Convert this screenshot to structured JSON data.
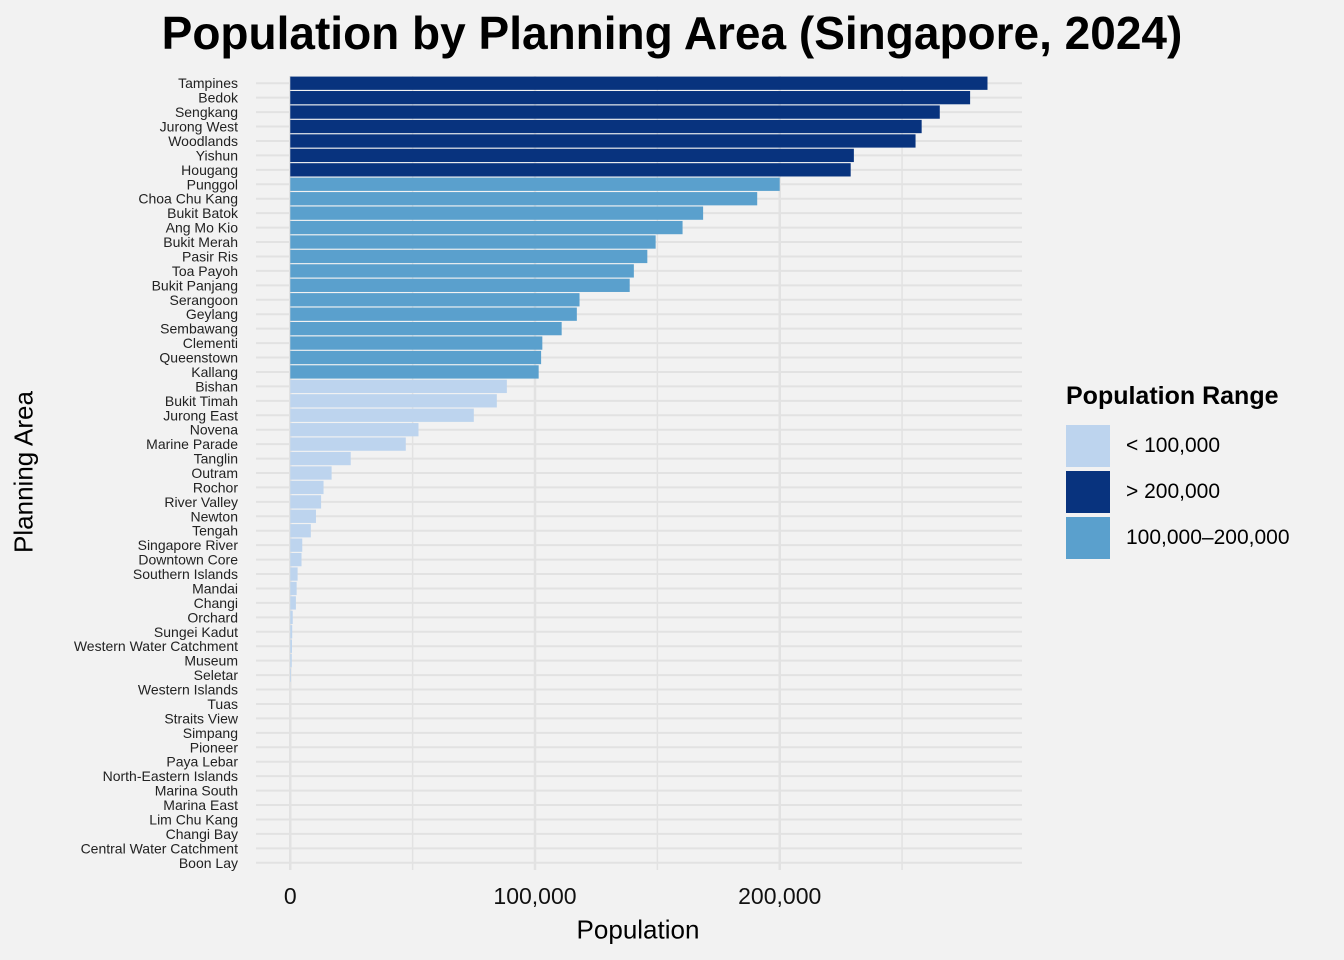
{
  "chart_data": {
    "type": "bar",
    "orientation": "horizontal",
    "title": "Population by Planning Area (Singapore, 2024)",
    "xlabel": "Population",
    "ylabel": "Planning Area",
    "xlim": [
      -14000,
      299000
    ],
    "xticks": [
      0,
      100000,
      200000
    ],
    "xtick_labels": [
      "0",
      "100,000",
      "200,000"
    ],
    "grid": true,
    "legend_position": "right",
    "legend": {
      "title": "Population Range",
      "entries": [
        {
          "label": "< 100,000",
          "color": "#bdd4ee"
        },
        {
          "label": "> 200,000",
          "color": "#08337e"
        },
        {
          "label": "100,000–200,000",
          "color": "#5aa0cd"
        }
      ]
    },
    "categories": [
      "Tampines",
      "Bedok",
      "Sengkang",
      "Jurong West",
      "Woodlands",
      "Yishun",
      "Hougang",
      "Punggol",
      "Choa Chu Kang",
      "Bukit Batok",
      "Ang Mo Kio",
      "Bukit Merah",
      "Pasir Ris",
      "Toa Payoh",
      "Bukit Panjang",
      "Serangoon",
      "Geylang",
      "Sembawang",
      "Clementi",
      "Queenstown",
      "Kallang",
      "Bishan",
      "Bukit Timah",
      "Jurong East",
      "Novena",
      "Marine Parade",
      "Tanglin",
      "Outram",
      "Rochor",
      "River Valley",
      "Newton",
      "Tengah",
      "Singapore River",
      "Downtown Core",
      "Southern Islands",
      "Mandai",
      "Changi",
      "Orchard",
      "Sungei Kadut",
      "Western Water Catchment",
      "Museum",
      "Seletar",
      "Western Islands",
      "Tuas",
      "Straits View",
      "Simpang",
      "Pioneer",
      "Paya Lebar",
      "North-Eastern Islands",
      "Marina South",
      "Marina East",
      "Lim Chu Kang",
      "Changi Bay",
      "Central Water Catchment",
      "Boon Lay"
    ],
    "values": [
      284900,
      277800,
      265400,
      258000,
      255500,
      230300,
      229000,
      200000,
      190800,
      168700,
      160300,
      149300,
      145900,
      140400,
      138700,
      118200,
      117100,
      110900,
      103000,
      102500,
      101500,
      88500,
      84400,
      75000,
      52400,
      47200,
      24700,
      16900,
      13600,
      12600,
      10500,
      8400,
      4900,
      4600,
      3000,
      2600,
      2300,
      1000,
      800,
      700,
      600,
      300,
      0,
      0,
      0,
      0,
      0,
      0,
      0,
      0,
      0,
      0,
      0,
      0,
      0
    ],
    "color_groups": [
      "> 200,000",
      "> 200,000",
      "> 200,000",
      "> 200,000",
      "> 200,000",
      "> 200,000",
      "> 200,000",
      "100,000–200,000",
      "100,000–200,000",
      "100,000–200,000",
      "100,000–200,000",
      "100,000–200,000",
      "100,000–200,000",
      "100,000–200,000",
      "100,000–200,000",
      "100,000–200,000",
      "100,000–200,000",
      "100,000–200,000",
      "100,000–200,000",
      "100,000–200,000",
      "100,000–200,000",
      "< 100,000",
      "< 100,000",
      "< 100,000",
      "< 100,000",
      "< 100,000",
      "< 100,000",
      "< 100,000",
      "< 100,000",
      "< 100,000",
      "< 100,000",
      "< 100,000",
      "< 100,000",
      "< 100,000",
      "< 100,000",
      "< 100,000",
      "< 100,000",
      "< 100,000",
      "< 100,000",
      "< 100,000",
      "< 100,000",
      "< 100,000",
      "< 100,000",
      "< 100,000",
      "< 100,000",
      "< 100,000",
      "< 100,000",
      "< 100,000",
      "< 100,000",
      "< 100,000",
      "< 100,000",
      "< 100,000",
      "< 100,000",
      "< 100,000",
      "< 100,000"
    ]
  }
}
